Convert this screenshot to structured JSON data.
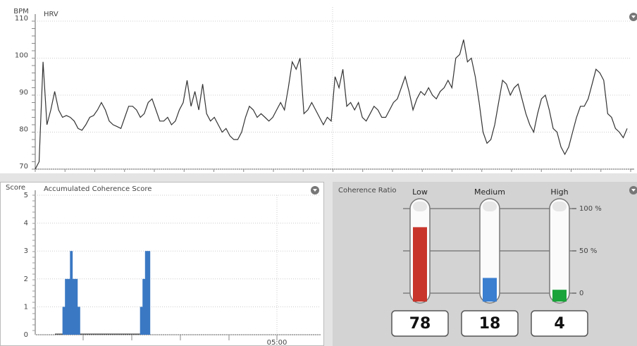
{
  "chart_data": [
    {
      "type": "line",
      "title": "HRV",
      "y_label": "BPM",
      "color": "#333333",
      "ylim": [
        70,
        110
      ],
      "yticks": [
        70,
        80,
        90,
        100,
        110
      ],
      "grid": true,
      "values": [
        70,
        72,
        99,
        82,
        86,
        91,
        86,
        84,
        84.5,
        84,
        83,
        81,
        80.5,
        82,
        84,
        84.5,
        86,
        88,
        86,
        83,
        82,
        81.5,
        81,
        84,
        87,
        87,
        86,
        84,
        85,
        88,
        89,
        86,
        83,
        83,
        84,
        82,
        83,
        86,
        88,
        94,
        87,
        91,
        86,
        93,
        85,
        83,
        84,
        82,
        80,
        81,
        79,
        78,
        78,
        80,
        84,
        87,
        86,
        84,
        85,
        84,
        83,
        84,
        86,
        88,
        86,
        92,
        99,
        97,
        100,
        85,
        86,
        88,
        86,
        84,
        82,
        84,
        83,
        95,
        92,
        97,
        87,
        88,
        86,
        88,
        84,
        83,
        85,
        87,
        86,
        84,
        84,
        86,
        88,
        89,
        92,
        95,
        91,
        86,
        89,
        91,
        90,
        92,
        90,
        89,
        91,
        92,
        94,
        92,
        100,
        101,
        105,
        99,
        100,
        95,
        88,
        80,
        77,
        78,
        82,
        88,
        94,
        93,
        90,
        92,
        93,
        89,
        85,
        82,
        80,
        85,
        89,
        90,
        86,
        81,
        80,
        76,
        74,
        76,
        80,
        84,
        87,
        87,
        89,
        93,
        97,
        96,
        94,
        85,
        84,
        81,
        80,
        78.5,
        81
      ]
    },
    {
      "type": "step",
      "title": "Accumulated Coherence Score",
      "y_label": "Score",
      "color": "#3a78c3",
      "ylim": [
        0,
        5
      ],
      "yticks": [
        0,
        1,
        2,
        3,
        4,
        5
      ],
      "grid": true,
      "xtick_labels": [
        "05:00"
      ],
      "values": [
        0,
        0,
        0,
        1,
        2,
        2,
        3,
        2,
        2,
        1,
        0,
        0,
        0,
        0,
        0,
        0,
        0,
        0,
        0,
        0,
        0,
        0,
        0,
        0,
        0,
        0,
        0,
        0,
        0,
        0,
        0,
        0,
        0,
        0,
        1,
        2,
        3,
        3
      ]
    },
    {
      "type": "bar",
      "title": "Coherence Ratio",
      "categories": [
        "Low",
        "Medium",
        "High"
      ],
      "values": [
        78,
        18,
        4
      ],
      "colors": [
        "#c8352b",
        "#3a7fd0",
        "#1aa33a"
      ],
      "ylim": [
        0,
        100
      ],
      "yticks": [
        0,
        {
          "value": 50,
          "label": "50 %"
        },
        {
          "value": 100,
          "label": "100 %"
        }
      ],
      "grid": true
    }
  ]
}
